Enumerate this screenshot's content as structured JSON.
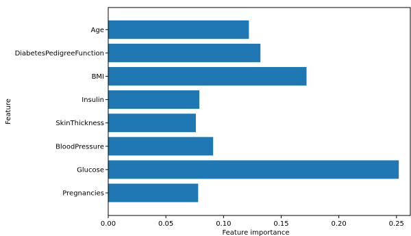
{
  "chart_data": {
    "type": "bar",
    "orientation": "horizontal",
    "categories": [
      "Pregnancies",
      "Glucose",
      "BloodPressure",
      "SkinThickness",
      "Insulin",
      "BMI",
      "DiabetesPedigreeFunction",
      "Age"
    ],
    "values": [
      0.078,
      0.252,
      0.091,
      0.076,
      0.079,
      0.172,
      0.132,
      0.122
    ],
    "xlabel": "Feature importance",
    "ylabel": "Feature",
    "xlim": [
      0,
      0.262
    ],
    "xticks": [
      0.0,
      0.05,
      0.1,
      0.15,
      0.2,
      0.25
    ],
    "xtick_labels": [
      "0.00",
      "0.05",
      "0.10",
      "0.15",
      "0.20",
      "0.25"
    ],
    "grid": false,
    "bar_color": "#1f77b4"
  }
}
